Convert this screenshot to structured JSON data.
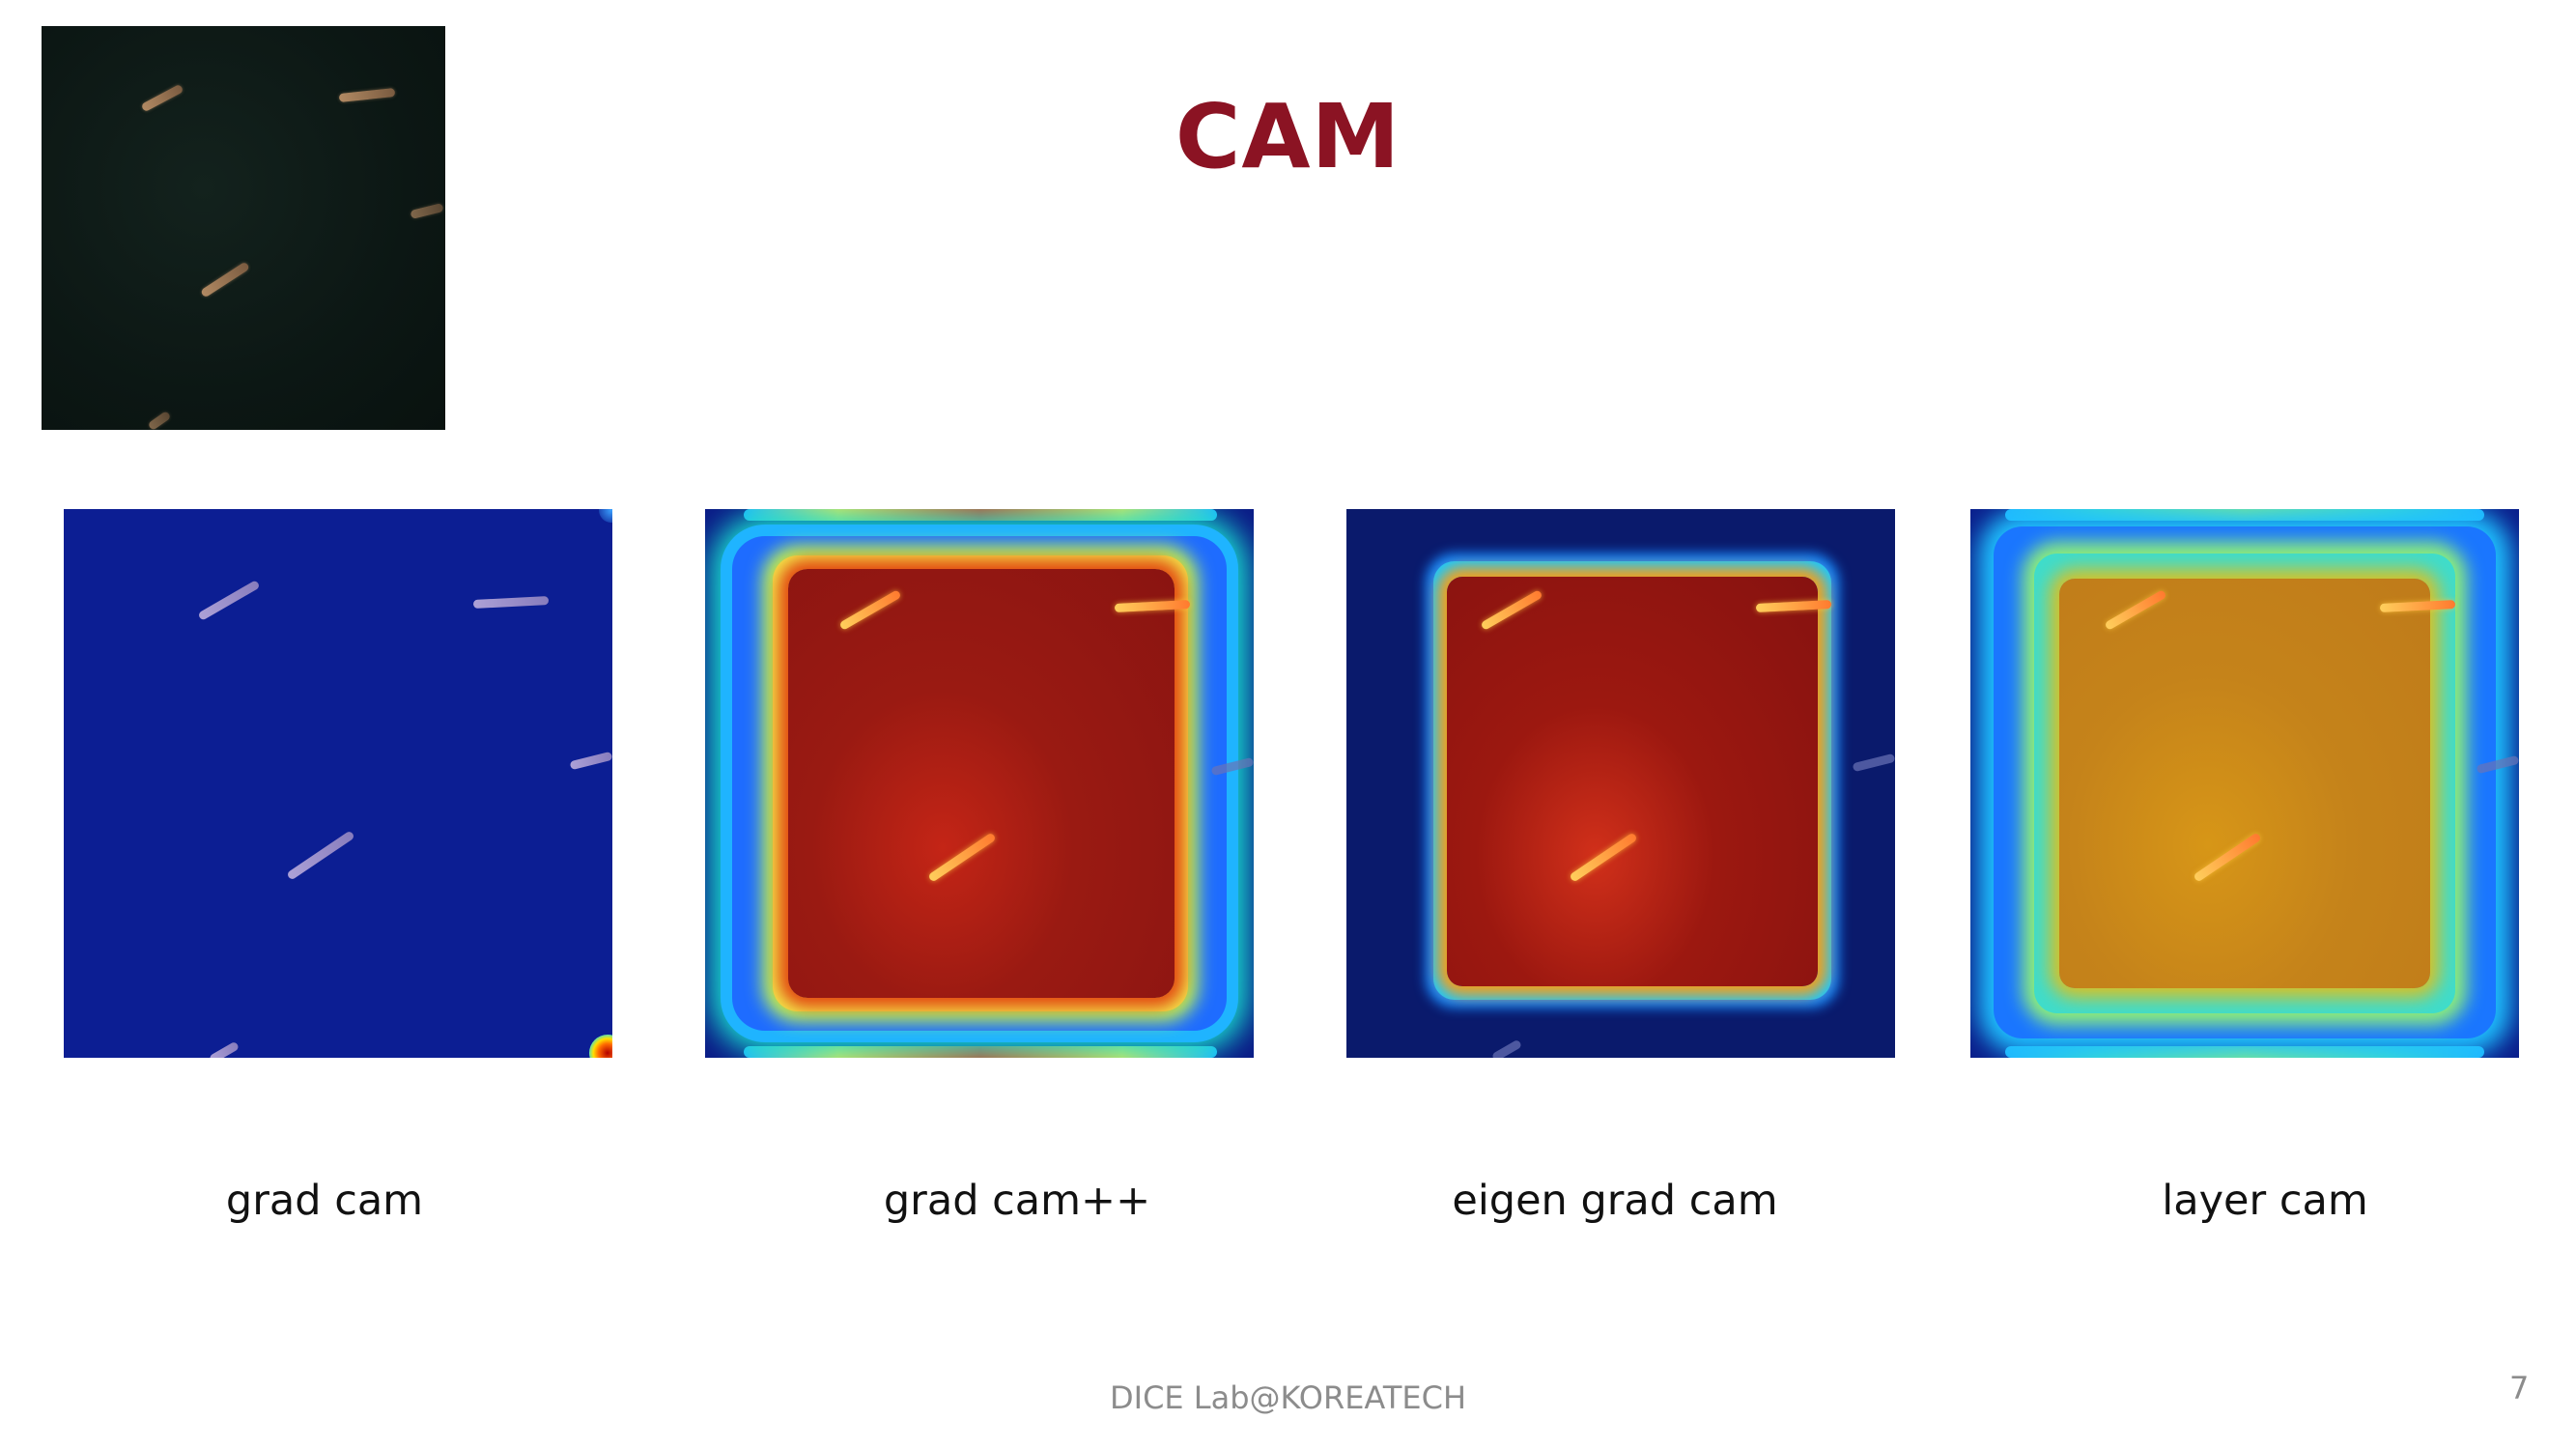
{
  "slide": {
    "title": "CAM",
    "title_color": "#8b1323",
    "footer": "DICE Lab@KOREATECH",
    "page_number": "7"
  },
  "original_image": {
    "description_icon": "satellite-ships-image"
  },
  "panels": [
    {
      "caption": "grad cam"
    },
    {
      "caption": "grad cam++"
    },
    {
      "caption": "eigen grad cam"
    },
    {
      "caption": "layer cam"
    }
  ]
}
